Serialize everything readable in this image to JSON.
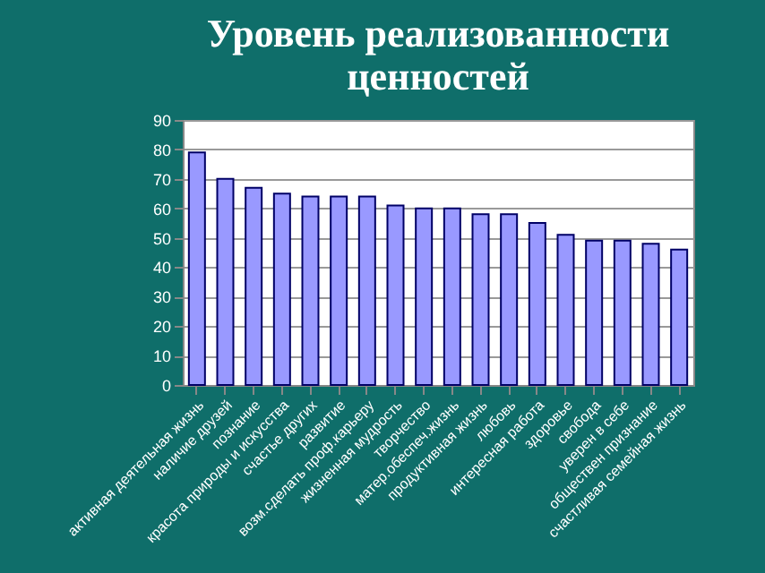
{
  "chart_data": {
    "type": "bar",
    "title": "Уровень реализованности ценностей",
    "categories": [
      "активная деятельная жизнь",
      "наличие друзей",
      "познание",
      "красота природы и искусства",
      "счастье других",
      "развитие",
      "возм.сделать проф.карьеру",
      "жизненная мудрость",
      "творчество",
      "матер.обеспеч.жизнь",
      "продуктивная жизнь",
      "любовь",
      "интересная работа",
      "здоровье",
      "свобода",
      "уверен в себе",
      "обществен признание",
      "счастливая семейная жизнь"
    ],
    "values": [
      79,
      70,
      67,
      65,
      64,
      64,
      64,
      61,
      60,
      60,
      58,
      58,
      55,
      51,
      49,
      49,
      48,
      46
    ],
    "color": "#9999ff",
    "ylim": [
      0,
      90
    ],
    "yticks": [
      0,
      10,
      20,
      30,
      40,
      50,
      60,
      70,
      80,
      90
    ],
    "grid": "y"
  }
}
